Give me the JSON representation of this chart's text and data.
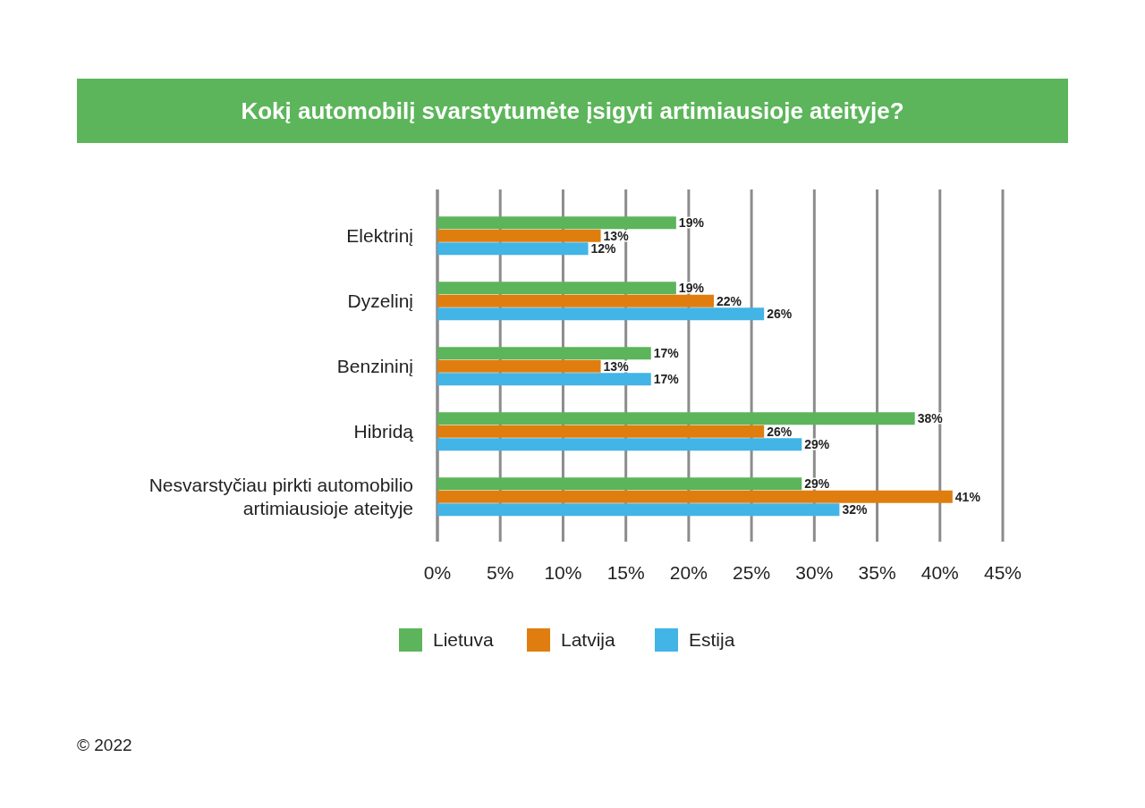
{
  "chart_data": {
    "type": "bar",
    "orientation": "horizontal",
    "title": "Kokį automobilį svarstytumėte įsigyti artimiausioje ateityje?",
    "categories": [
      "Elektrinį",
      "Dyzelinį",
      "Benzininį",
      "Hibridą",
      "Nesvarstyčiau pirkti automobilio artimiausioje ateityje"
    ],
    "series": [
      {
        "name": "Lietuva",
        "color": "#5cb55a",
        "values": [
          19,
          19,
          17,
          38,
          29
        ],
        "value_labels": [
          "19%",
          "19%",
          "17%",
          "38%",
          "29%"
        ]
      },
      {
        "name": "Latvija",
        "color": "#e07d0f",
        "values": [
          13,
          22,
          13,
          26,
          41
        ],
        "value_labels": [
          "13%",
          "22%",
          "13%",
          "26%",
          "41%"
        ]
      },
      {
        "name": "Estija",
        "color": "#42b4e6",
        "values": [
          12,
          26,
          17,
          29,
          32
        ],
        "value_labels": [
          "12%",
          "26%",
          "17%",
          "29%",
          "32%"
        ]
      }
    ],
    "xlim": [
      0,
      45
    ],
    "xticks": [
      {
        "value": 0,
        "label": "0%"
      },
      {
        "value": 5,
        "label": "5%"
      },
      {
        "value": 10,
        "label": "10%"
      },
      {
        "value": 15,
        "label": "15%"
      },
      {
        "value": 20,
        "label": "20%"
      },
      {
        "value": 25,
        "label": "25%"
      },
      {
        "value": 30,
        "label": "30%"
      },
      {
        "value": 35,
        "label": "35%"
      },
      {
        "value": 40,
        "label": "40%"
      },
      {
        "value": 45,
        "label": "45%"
      }
    ],
    "grid": "x",
    "legend": "bottom",
    "annotations": [
      "© 2022"
    ]
  }
}
